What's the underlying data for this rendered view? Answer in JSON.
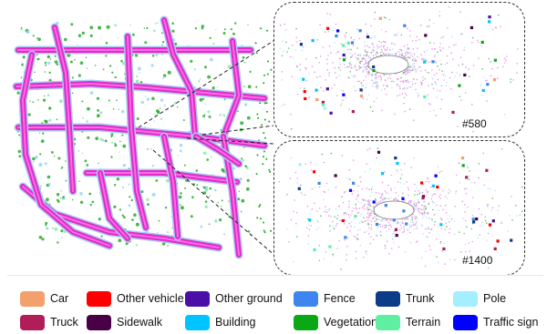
{
  "insets": [
    {
      "frame_label": "#580"
    },
    {
      "frame_label": "#1400"
    }
  ],
  "legend": [
    {
      "label": "Car",
      "color": "#f4a06c"
    },
    {
      "label": "Other vehicle",
      "color": "#ff0000"
    },
    {
      "label": "Other ground",
      "color": "#4b0fa8"
    },
    {
      "label": "Fence",
      "color": "#3d86f0"
    },
    {
      "label": "Trunk",
      "color": "#0a3c87"
    },
    {
      "label": "Pole",
      "color": "#a3eeff"
    },
    {
      "label": "Truck",
      "color": "#b01e5a"
    },
    {
      "label": "Sidewalk",
      "color": "#4a0045"
    },
    {
      "label": "Building",
      "color": "#00c4ff"
    },
    {
      "label": "Vegetation",
      "color": "#0aa814"
    },
    {
      "label": "Terrain",
      "color": "#5fefa2"
    },
    {
      "label": "Traffic sign",
      "color": "#0000ff"
    }
  ]
}
